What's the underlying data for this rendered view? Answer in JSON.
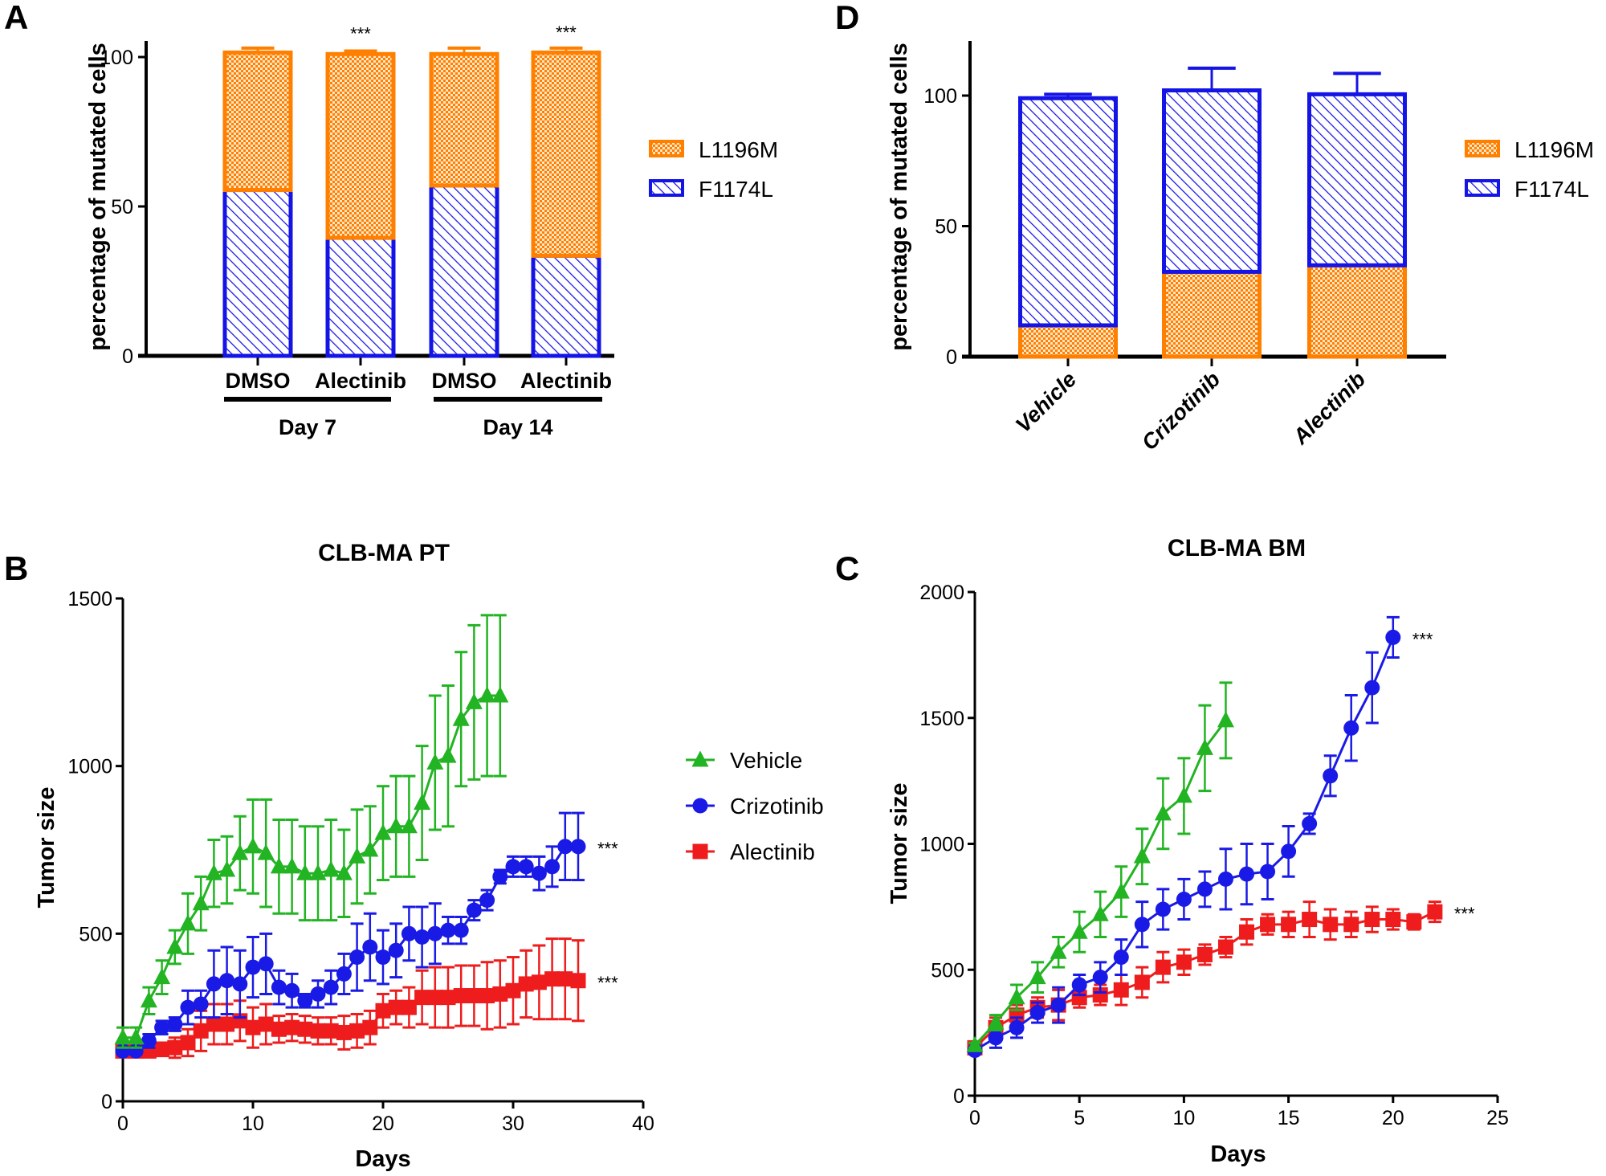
{
  "panels": {
    "A": {
      "letter": "A"
    },
    "B": {
      "letter": "B"
    },
    "C": {
      "letter": "C"
    },
    "D": {
      "letter": "D"
    }
  },
  "colors": {
    "F1174L": "#1414e6",
    "L1196M": "#ff8000",
    "Vehicle": "#22b422",
    "Crizotinib": "#1a1ae6",
    "Alectinib": "#ee1c1c"
  },
  "chart_data": [
    {
      "panel": "A",
      "type": "bar",
      "stacked": true,
      "ylabel": "percentage of mutated cells",
      "ylim": [
        0,
        105
      ],
      "yticks": [
        0,
        50,
        100
      ],
      "categories": [
        "DMSO",
        "Alectinib",
        "DMSO",
        "Alectinib"
      ],
      "groups": [
        {
          "label": "Day 7",
          "categories": [
            0,
            1
          ]
        },
        {
          "label": "Day 14",
          "categories": [
            2,
            3
          ]
        }
      ],
      "stack_order": [
        "F1174L",
        "L1196M"
      ],
      "series": [
        {
          "name": "F1174L",
          "values": [
            55.5,
            39.5,
            57,
            33.5
          ],
          "errors": [
            1.5,
            1.5,
            1.5,
            1.5
          ],
          "pattern": "diagonal-hatch"
        },
        {
          "name": "L1196M",
          "values": [
            46,
            61.5,
            44,
            68
          ],
          "errors": [
            1.5,
            1,
            2,
            1.5
          ],
          "pattern": "checker"
        }
      ],
      "legend": [
        "L1196M",
        "F1174L"
      ],
      "legend_position": "right",
      "annotations": [
        "",
        "***",
        "",
        "***"
      ]
    },
    {
      "panel": "D",
      "type": "bar",
      "stacked": true,
      "ylabel": "percentage of mutated cells",
      "ylim": [
        0,
        120
      ],
      "yticks": [
        0,
        50,
        100
      ],
      "categories": [
        "Vehicle",
        "Crizotinib",
        "Alectinib"
      ],
      "stack_order": [
        "L1196M",
        "F1174L"
      ],
      "series": [
        {
          "name": "L1196M",
          "values": [
            12,
            32.5,
            35
          ],
          "errors": [
            1.5,
            13,
            10
          ],
          "pattern": "checker"
        },
        {
          "name": "F1174L",
          "values": [
            87,
            69.5,
            65.5
          ],
          "errors": [
            1.5,
            8.5,
            8
          ],
          "pattern": "diagonal-hatch"
        }
      ],
      "legend": [
        "L1196M",
        "F1174L"
      ],
      "legend_position": "right",
      "annotations": [
        "",
        "**",
        "**"
      ]
    },
    {
      "panel": "B",
      "type": "line",
      "title": "CLB-MA PT",
      "xlabel": "Days",
      "ylabel": "Tumor size",
      "xlim": [
        0,
        40
      ],
      "ylim": [
        0,
        1500
      ],
      "xticks": [
        0,
        10,
        20,
        30,
        40
      ],
      "yticks": [
        0,
        500,
        1000,
        1500
      ],
      "legend_position": "right",
      "series": [
        {
          "name": "Vehicle",
          "marker": "triangle",
          "x": [
            0,
            1,
            2,
            3,
            4,
            5,
            6,
            7,
            8,
            9,
            10,
            11,
            12,
            13,
            14,
            15,
            16,
            17,
            18,
            19,
            20,
            21,
            22,
            23,
            24,
            25,
            26,
            27,
            28,
            29
          ],
          "y": [
            190,
            190,
            300,
            370,
            460,
            530,
            590,
            680,
            690,
            740,
            760,
            740,
            700,
            700,
            680,
            680,
            690,
            680,
            730,
            750,
            800,
            820,
            820,
            890,
            1010,
            1030,
            1140,
            1190,
            1210,
            1210
          ],
          "err": [
            30,
            30,
            40,
            50,
            50,
            90,
            80,
            100,
            100,
            110,
            140,
            160,
            140,
            140,
            140,
            140,
            150,
            130,
            140,
            130,
            140,
            150,
            150,
            170,
            200,
            210,
            200,
            230,
            240,
            240
          ],
          "annotation": ""
        },
        {
          "name": "Crizotinib",
          "marker": "circle",
          "x": [
            0,
            1,
            2,
            3,
            4,
            5,
            6,
            7,
            8,
            9,
            10,
            11,
            12,
            13,
            14,
            15,
            16,
            17,
            18,
            19,
            20,
            21,
            22,
            23,
            24,
            25,
            26,
            27,
            28,
            29,
            30,
            31,
            32,
            33,
            34,
            35
          ],
          "y": [
            150,
            150,
            180,
            220,
            230,
            280,
            290,
            350,
            360,
            350,
            400,
            410,
            340,
            330,
            300,
            320,
            340,
            380,
            430,
            460,
            430,
            450,
            500,
            490,
            500,
            510,
            510,
            570,
            600,
            670,
            700,
            700,
            680,
            700,
            760,
            760
          ],
          "err": [
            10,
            10,
            20,
            20,
            20,
            50,
            40,
            100,
            100,
            100,
            90,
            90,
            50,
            50,
            20,
            40,
            50,
            60,
            100,
            100,
            80,
            80,
            80,
            90,
            90,
            40,
            40,
            30,
            30,
            20,
            30,
            30,
            50,
            60,
            100,
            100
          ],
          "annotation": "***"
        },
        {
          "name": "Alectinib",
          "marker": "square",
          "x": [
            0,
            1,
            2,
            3,
            4,
            5,
            6,
            7,
            8,
            9,
            10,
            11,
            12,
            13,
            14,
            15,
            16,
            17,
            18,
            19,
            20,
            21,
            22,
            23,
            24,
            25,
            26,
            27,
            28,
            29,
            30,
            31,
            32,
            33,
            34,
            35
          ],
          "y": [
            150,
            150,
            150,
            155,
            160,
            175,
            210,
            230,
            230,
            240,
            220,
            230,
            215,
            220,
            215,
            210,
            210,
            205,
            210,
            220,
            270,
            280,
            280,
            310,
            310,
            310,
            315,
            315,
            315,
            320,
            330,
            350,
            355,
            365,
            365,
            360
          ],
          "err": [
            10,
            10,
            10,
            20,
            30,
            40,
            60,
            60,
            60,
            60,
            60,
            60,
            40,
            40,
            40,
            40,
            40,
            50,
            50,
            50,
            50,
            50,
            60,
            80,
            90,
            90,
            90,
            90,
            100,
            100,
            100,
            100,
            110,
            120,
            120,
            120
          ],
          "annotation": "***"
        }
      ]
    },
    {
      "panel": "C",
      "type": "line",
      "title": "CLB-MA BM",
      "xlabel": "Days",
      "ylabel": "Tumor size",
      "xlim": [
        0,
        25
      ],
      "ylim": [
        0,
        2000
      ],
      "xticks": [
        0,
        5,
        10,
        15,
        20,
        25
      ],
      "yticks": [
        0,
        500,
        1000,
        1500,
        2000
      ],
      "series": [
        {
          "name": "Vehicle",
          "marker": "triangle",
          "x": [
            0,
            1,
            2,
            3,
            4,
            5,
            6,
            7,
            8,
            9,
            10,
            11,
            12
          ],
          "y": [
            200,
            290,
            390,
            470,
            570,
            650,
            720,
            810,
            950,
            1120,
            1190,
            1380,
            1490
          ],
          "err": [
            10,
            30,
            50,
            60,
            60,
            80,
            90,
            100,
            110,
            140,
            150,
            170,
            150
          ],
          "annotation": ""
        },
        {
          "name": "Crizotinib",
          "marker": "circle",
          "x": [
            0,
            1,
            2,
            3,
            4,
            5,
            6,
            7,
            8,
            9,
            10,
            11,
            12,
            13,
            14,
            15,
            16,
            17,
            18,
            19,
            20
          ],
          "y": [
            180,
            230,
            270,
            330,
            360,
            440,
            470,
            550,
            680,
            740,
            780,
            820,
            860,
            880,
            890,
            970,
            1080,
            1270,
            1460,
            1620,
            1820
          ],
          "err": [
            10,
            40,
            40,
            40,
            70,
            40,
            60,
            70,
            90,
            80,
            80,
            70,
            120,
            120,
            110,
            100,
            40,
            80,
            130,
            140,
            80
          ],
          "annotation": "***"
        },
        {
          "name": "Alectinib",
          "marker": "square",
          "x": [
            0,
            1,
            2,
            3,
            4,
            5,
            6,
            7,
            8,
            9,
            10,
            11,
            12,
            13,
            14,
            15,
            16,
            17,
            18,
            19,
            20,
            21,
            22
          ],
          "y": [
            190,
            270,
            320,
            350,
            360,
            390,
            400,
            420,
            450,
            510,
            530,
            560,
            590,
            650,
            680,
            680,
            700,
            680,
            680,
            700,
            700,
            690,
            730
          ],
          "err": [
            20,
            40,
            40,
            40,
            60,
            40,
            40,
            60,
            60,
            60,
            50,
            40,
            40,
            50,
            40,
            50,
            70,
            60,
            50,
            50,
            40,
            30,
            40
          ],
          "annotation": "***"
        }
      ]
    }
  ]
}
